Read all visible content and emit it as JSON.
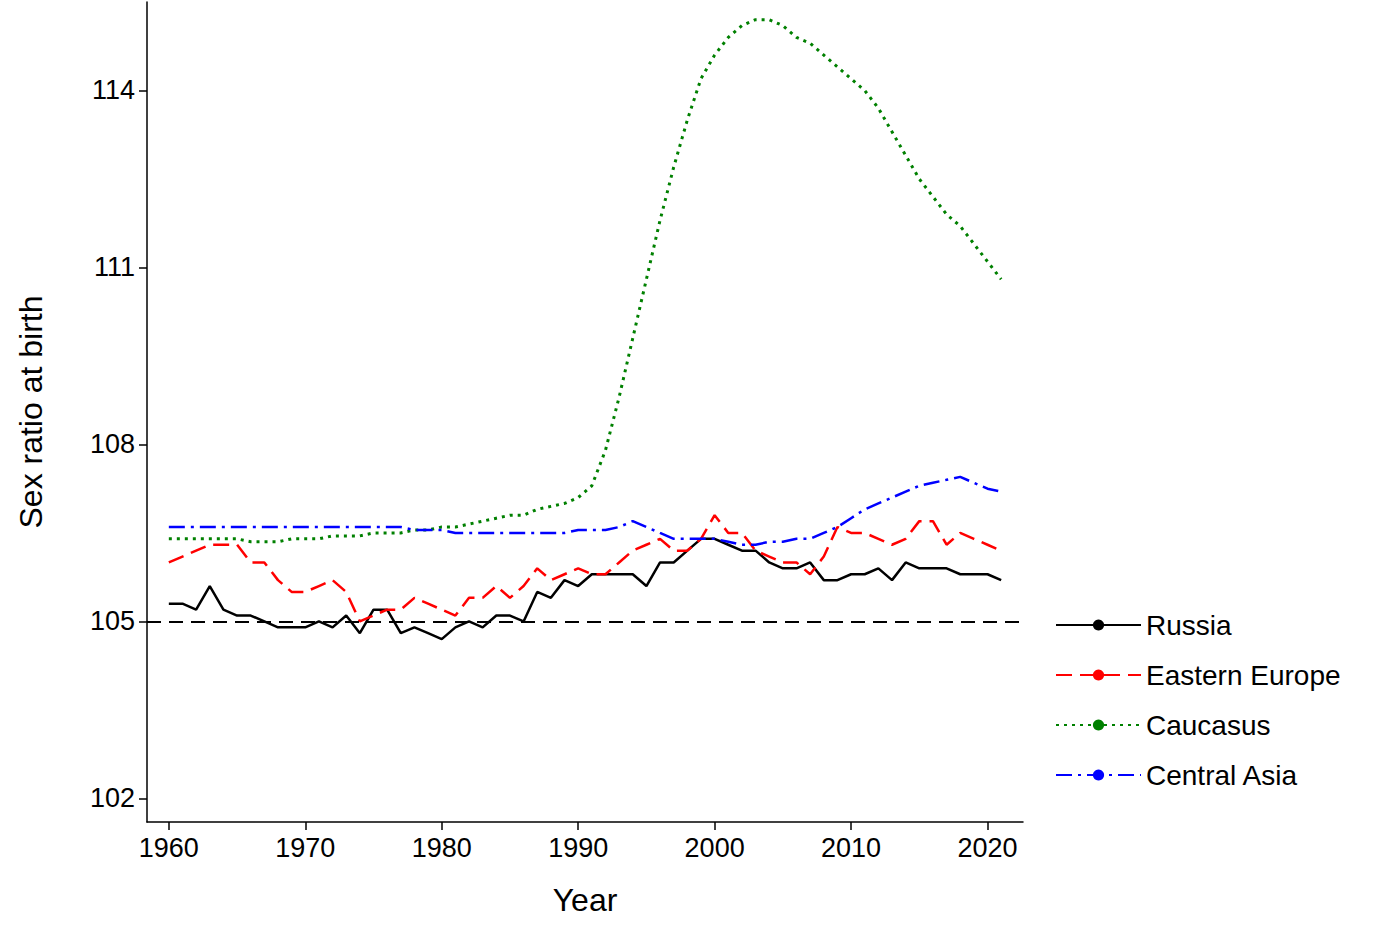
{
  "chart_data": {
    "type": "line",
    "x_label": "Year",
    "y_label": "Sex ratio at birth",
    "x": [
      1960,
      1961,
      1962,
      1963,
      1964,
      1965,
      1966,
      1967,
      1968,
      1969,
      1970,
      1971,
      1972,
      1973,
      1974,
      1975,
      1976,
      1977,
      1978,
      1979,
      1980,
      1981,
      1982,
      1983,
      1984,
      1985,
      1986,
      1987,
      1988,
      1989,
      1990,
      1991,
      1992,
      1993,
      1994,
      1995,
      1996,
      1997,
      1998,
      1999,
      2000,
      2001,
      2002,
      2003,
      2004,
      2005,
      2006,
      2007,
      2008,
      2009,
      2010,
      2011,
      2012,
      2013,
      2014,
      2015,
      2016,
      2017,
      2018,
      2019,
      2020,
      2021
    ],
    "xlim": [
      1958.4,
      2022.6
    ],
    "xticks": [
      1960,
      1970,
      1980,
      1990,
      2000,
      2010,
      2020
    ],
    "ylim": [
      101.6,
      115.5
    ],
    "yticks": [
      102,
      105,
      108,
      111,
      114
    ],
    "hline": 105,
    "grid": false,
    "legend": "right",
    "series": [
      {
        "name": "Russia",
        "color": "#000000",
        "line_style": "solid",
        "values": [
          105.3,
          105.3,
          105.2,
          105.6,
          105.2,
          105.1,
          105.1,
          105.0,
          104.9,
          104.9,
          104.9,
          105.0,
          104.9,
          105.1,
          104.8,
          105.2,
          105.2,
          104.8,
          104.9,
          104.8,
          104.7,
          104.9,
          105.0,
          104.9,
          105.1,
          105.1,
          105.0,
          105.5,
          105.4,
          105.7,
          105.6,
          105.8,
          105.8,
          105.8,
          105.8,
          105.6,
          106.0,
          106.0,
          106.2,
          106.4,
          106.4,
          106.3,
          106.2,
          106.2,
          106.0,
          105.9,
          105.9,
          106.0,
          105.7,
          105.7,
          105.8,
          105.8,
          105.9,
          105.7,
          106.0,
          105.9,
          105.9,
          105.9,
          105.8,
          105.8,
          105.8,
          105.7
        ]
      },
      {
        "name": "Eastern Europe",
        "color": "#ff0000",
        "line_style": "dashed",
        "values": [
          106.0,
          106.1,
          106.2,
          106.3,
          106.3,
          106.3,
          106.0,
          106.0,
          105.7,
          105.5,
          105.5,
          105.6,
          105.7,
          105.5,
          105.0,
          105.1,
          105.2,
          105.2,
          105.4,
          105.3,
          105.2,
          105.1,
          105.4,
          105.4,
          105.6,
          105.4,
          105.6,
          105.9,
          105.7,
          105.8,
          105.9,
          105.8,
          105.8,
          106.0,
          106.2,
          106.3,
          106.4,
          106.2,
          106.2,
          106.4,
          106.8,
          106.5,
          106.5,
          106.2,
          106.1,
          106.0,
          106.0,
          105.8,
          106.1,
          106.6,
          106.5,
          106.5,
          106.4,
          106.3,
          106.4,
          106.7,
          106.7,
          106.3,
          106.5,
          106.4,
          106.3,
          106.2
        ]
      },
      {
        "name": "Caucasus",
        "color": "#008000",
        "line_style": "dotted",
        "values": [
          106.4,
          106.4,
          106.4,
          106.4,
          106.4,
          106.4,
          106.35,
          106.35,
          106.35,
          106.4,
          106.4,
          106.4,
          106.45,
          106.45,
          106.45,
          106.5,
          106.5,
          106.5,
          106.55,
          106.55,
          106.6,
          106.6,
          106.65,
          106.7,
          106.75,
          106.8,
          106.8,
          106.9,
          106.95,
          107.0,
          107.1,
          107.3,
          107.9,
          108.8,
          109.8,
          110.8,
          111.8,
          112.7,
          113.5,
          114.2,
          114.6,
          114.9,
          115.1,
          115.2,
          115.2,
          115.1,
          114.9,
          114.8,
          114.6,
          114.4,
          114.2,
          114.0,
          113.7,
          113.3,
          112.9,
          112.5,
          112.2,
          111.9,
          111.7,
          111.4,
          111.1,
          110.8
        ]
      },
      {
        "name": "Central Asia",
        "color": "#0000ff",
        "line_style": "dashdot",
        "values": [
          106.6,
          106.6,
          106.6,
          106.6,
          106.6,
          106.6,
          106.6,
          106.6,
          106.6,
          106.6,
          106.6,
          106.6,
          106.6,
          106.6,
          106.6,
          106.6,
          106.6,
          106.6,
          106.55,
          106.55,
          106.55,
          106.5,
          106.5,
          106.5,
          106.5,
          106.5,
          106.5,
          106.5,
          106.5,
          106.5,
          106.55,
          106.55,
          106.55,
          106.6,
          106.7,
          106.6,
          106.5,
          106.4,
          106.4,
          106.4,
          106.4,
          106.35,
          106.3,
          106.3,
          106.35,
          106.35,
          106.4,
          106.4,
          106.5,
          106.6,
          106.75,
          106.9,
          107.0,
          107.1,
          107.2,
          107.3,
          107.35,
          107.4,
          107.45,
          107.35,
          107.25,
          107.2
        ]
      }
    ]
  }
}
